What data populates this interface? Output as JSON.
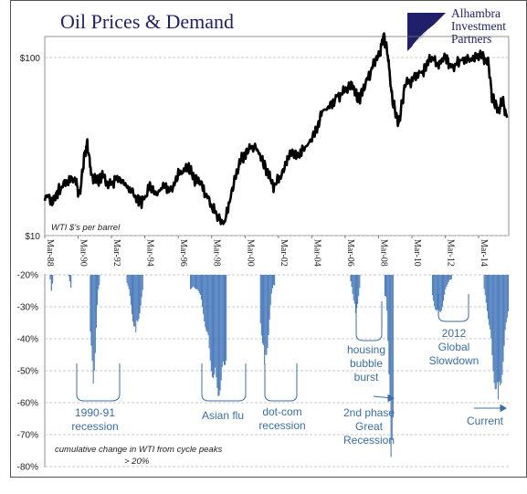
{
  "title": "Oil Prices & Demand",
  "logo": {
    "lines": [
      "Alhambra",
      "Investment",
      "Partners"
    ]
  },
  "chart_data": [
    {
      "type": "line",
      "yscale": "log",
      "ylim": [
        10,
        130
      ],
      "y_ticks": [
        "$100",
        "$10"
      ],
      "note": "WTI $'s per barrel",
      "x_ticks": [
        "Mar-88",
        "Mar-90",
        "Mar-92",
        "Mar-94",
        "Mar-96",
        "Mar-98",
        "Mar-00",
        "Mar-02",
        "Mar-04",
        "Mar-06",
        "Mar-08",
        "Mar-10",
        "Mar-12",
        "Mar-14"
      ],
      "series": [
        {
          "x": [
            1988.2,
            1988.7,
            1989.0,
            1989.5,
            1990.0,
            1990.3,
            1990.55,
            1990.75,
            1991.0,
            1991.3,
            1991.7,
            1992.0,
            1992.5,
            1992.9,
            1993.3,
            1993.8,
            1994.0,
            1994.5,
            1994.9,
            1995.3,
            1995.8,
            1996.2,
            1996.8,
            1997.1,
            1997.5,
            1998.0,
            1998.5,
            1998.95,
            1999.3,
            1999.7,
            2000.0,
            2000.3,
            2000.8,
            2001.2,
            2001.6,
            2001.95,
            2002.3,
            2002.7,
            2003.0,
            2003.3,
            2003.8,
            2004.2,
            2004.6,
            2004.8,
            2005.2,
            2005.7,
            2006.2,
            2006.6,
            2007.0,
            2007.4,
            2007.9,
            2008.3,
            2008.5,
            2008.75,
            2009.0,
            2009.4,
            2009.8,
            2010.3,
            2010.9,
            2011.3,
            2011.8,
            2012.2,
            2012.5,
            2013.0,
            2013.6,
            2014.0,
            2014.45,
            2014.8,
            2015.0,
            2015.4,
            2015.6,
            2015.9
          ],
          "y": [
            17,
            15.5,
            18,
            20,
            21,
            17,
            27,
            33,
            22,
            20,
            22,
            19,
            21,
            20,
            18,
            16,
            15,
            19,
            17,
            19,
            18,
            22,
            25,
            21,
            20,
            16,
            13,
            11.5,
            16,
            23,
            27,
            30,
            32,
            27,
            22,
            19,
            21,
            26,
            30,
            28,
            31,
            35,
            42,
            50,
            52,
            60,
            65,
            71,
            58,
            70,
            92,
            108,
            133,
            105,
            60,
            42,
            71,
            76,
            85,
            100,
            92,
            102,
            88,
            93,
            96,
            100,
            104,
            90,
            60,
            50,
            58,
            46
          ]
        }
      ]
    },
    {
      "type": "area",
      "ylim": [
        -80,
        -20
      ],
      "y_ticks": [
        "-20%",
        "-30%",
        "-40%",
        "-50%",
        "-60%",
        "-70%",
        "-80%"
      ],
      "note": [
        "cumulative change in WTI from cycle peaks",
        "> 20%"
      ],
      "annotations": [
        {
          "lines": [
            "1990-91",
            "recession"
          ]
        },
        {
          "lines": [
            "Asian flu"
          ]
        },
        {
          "lines": [
            "dot-com",
            "recession"
          ]
        },
        {
          "lines": [
            "housing",
            "bubble",
            "burst"
          ]
        },
        {
          "lines": [
            "2nd phase",
            "Great",
            "Recession"
          ]
        },
        {
          "lines": [
            "2012",
            "Global",
            "Slowdown"
          ]
        },
        {
          "lines": [
            "Current"
          ]
        }
      ],
      "episodes": [
        {
          "start": 1988.5,
          "end": 1988.7,
          "depth": -25
        },
        {
          "start": 1989.6,
          "end": 1989.8,
          "depth": -24
        },
        {
          "start": 1990.9,
          "end": 1991.5,
          "depth": -54
        },
        {
          "start": 1993.1,
          "end": 1994.1,
          "depth": -38
        },
        {
          "start": 1996.9,
          "end": 1999.1,
          "depth": -58
        },
        {
          "start": 2001.1,
          "end": 2002.0,
          "depth": -48
        },
        {
          "start": 2006.5,
          "end": 2007.1,
          "depth": -32
        },
        {
          "start": 2008.55,
          "end": 2009.1,
          "depth": -77
        },
        {
          "start": 2011.4,
          "end": 2012.6,
          "depth": -33
        },
        {
          "start": 2014.5,
          "end": 2016.0,
          "depth": -59
        }
      ]
    }
  ]
}
